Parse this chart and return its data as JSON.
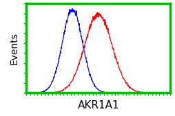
{
  "title": "",
  "xlabel": "AKR1A1",
  "ylabel": "Events",
  "background_color": "#ffffff",
  "border_color": "#00cc00",
  "blue_mean": 0.32,
  "blue_std": 0.07,
  "blue_amplitude": 0.93,
  "red_mean": 0.5,
  "red_std": 0.095,
  "red_amplitude": 0.88,
  "blue_color": "#0000ff",
  "red_color": "#ff0000",
  "green_color": "#00bb00",
  "xlim": [
    0.0,
    1.0
  ],
  "ylim": [
    0.0,
    1.0
  ],
  "xlabel_fontsize": 11,
  "ylabel_fontsize": 10,
  "noise_seed_blue": 42,
  "noise_seed_red": 99,
  "noise_scale": 0.018
}
